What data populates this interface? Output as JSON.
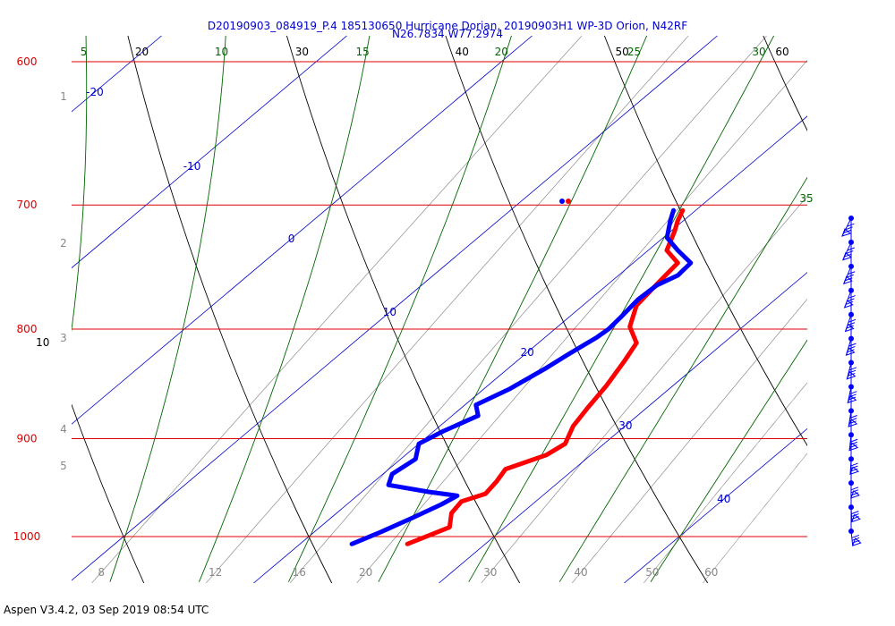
{
  "header": {
    "title_line1": "D20190903_084919_P.4 185130650 Hurricane Dorian, 20190903H1 WP-3D Orion, N42RF",
    "title_line2": "N26.7834 W77.2974"
  },
  "footer": {
    "text": "Aspen V3.4.2, 03 Sep 2019  08:54 UTC"
  },
  "colors": {
    "pressure_lines": "#dd0000",
    "isotherms": "#0000cc",
    "dry_adiabats": "#000000",
    "moist_adiabats": "#006600",
    "mixing_ratio": "#888888",
    "temperature": "#ff0000",
    "dewpoint": "#0000ff"
  },
  "chart_data": {
    "type": "skew-t",
    "y_axis": {
      "label": "",
      "scale": "log pressure",
      "ticks": [
        "600",
        "700",
        "800",
        "900",
        "1000"
      ],
      "range": [
        600,
        1050
      ]
    },
    "height_ticks": [
      "1",
      "2",
      "3",
      "4",
      "5"
    ],
    "isotherm_labels": [
      "-20",
      "-10",
      "0",
      "10",
      "20",
      "30",
      "40"
    ],
    "dry_adiabat_labels": [
      "10",
      "20",
      "30",
      "40",
      "50",
      "60"
    ],
    "moist_adiabat_labels": [
      "5",
      "10",
      "15",
      "20",
      "25",
      "30",
      "35"
    ],
    "mixing_ratio_labels": [
      "8",
      "12",
      "16",
      "20",
      "30",
      "40",
      "50",
      "60"
    ],
    "grid": true,
    "series": [
      {
        "name": "",
        "role": "temperature",
        "points": [
          {
            "p": 1008,
            "t": 25.8
          },
          {
            "p": 996,
            "t": 26.6
          },
          {
            "p": 990,
            "t": 27.0
          },
          {
            "p": 975,
            "t": 26.2
          },
          {
            "p": 963,
            "t": 26.0
          },
          {
            "p": 955,
            "t": 26.8
          },
          {
            "p": 942,
            "t": 26.6
          },
          {
            "p": 930,
            "t": 26.3
          },
          {
            "p": 916,
            "t": 27.6
          },
          {
            "p": 905,
            "t": 27.9
          },
          {
            "p": 888,
            "t": 27.2
          },
          {
            "p": 870,
            "t": 26.8
          },
          {
            "p": 850,
            "t": 26.4
          },
          {
            "p": 828,
            "t": 25.8
          },
          {
            "p": 812,
            "t": 25.3
          },
          {
            "p": 798,
            "t": 23.9
          },
          {
            "p": 780,
            "t": 22.9
          },
          {
            "p": 760,
            "t": 22.6
          },
          {
            "p": 745,
            "t": 22.4
          },
          {
            "p": 735,
            "t": 21.0
          },
          {
            "p": 720,
            "t": 20.2
          },
          {
            "p": 712,
            "t": 19.7
          },
          {
            "p": 704,
            "t": 19.3
          }
        ]
      },
      {
        "name": "",
        "role": "dewpoint",
        "points": [
          {
            "p": 1008,
            "t": 22.8
          },
          {
            "p": 995,
            "t": 23.6
          },
          {
            "p": 980,
            "t": 24.4
          },
          {
            "p": 966,
            "t": 25.1
          },
          {
            "p": 957,
            "t": 25.4
          },
          {
            "p": 953,
            "t": 23.6
          },
          {
            "p": 946,
            "t": 21.0
          },
          {
            "p": 935,
            "t": 20.5
          },
          {
            "p": 920,
            "t": 20.8
          },
          {
            "p": 905,
            "t": 20.0
          },
          {
            "p": 893,
            "t": 20.5
          },
          {
            "p": 878,
            "t": 21.4
          },
          {
            "p": 868,
            "t": 20.6
          },
          {
            "p": 853,
            "t": 21.4
          },
          {
            "p": 835,
            "t": 22.0
          },
          {
            "p": 820,
            "t": 22.4
          },
          {
            "p": 807,
            "t": 22.8
          },
          {
            "p": 800,
            "t": 22.9
          },
          {
            "p": 790,
            "t": 22.8
          },
          {
            "p": 775,
            "t": 22.6
          },
          {
            "p": 763,
            "t": 22.7
          },
          {
            "p": 755,
            "t": 23.2
          },
          {
            "p": 745,
            "t": 23.1
          },
          {
            "p": 735,
            "t": 21.6
          },
          {
            "p": 725,
            "t": 20.2
          },
          {
            "p": 712,
            "t": 19.3
          },
          {
            "p": 704,
            "t": 18.8
          }
        ]
      }
    ],
    "wind_profile": {
      "type": "barbs",
      "levels": 14
    }
  }
}
